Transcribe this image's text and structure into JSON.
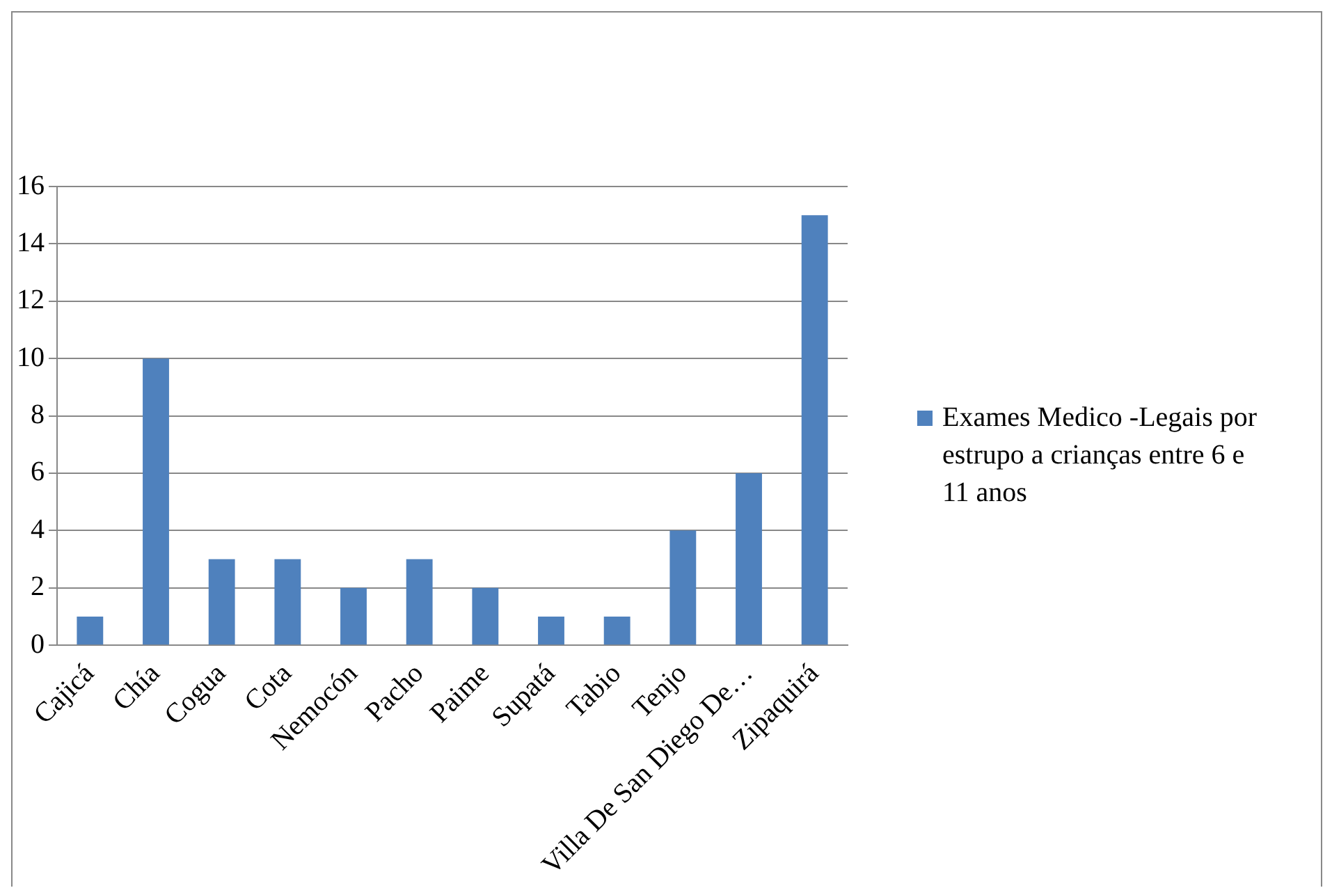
{
  "chart_data": {
    "type": "bar",
    "categories": [
      "Cajicá",
      "Chía",
      "Cogua",
      "Cota",
      "Nemocón",
      "Pacho",
      "Paime",
      "Supatá",
      "Tabio",
      "Tenjo",
      "Villa De San Diego De…",
      "Zipaquirá"
    ],
    "series": [
      {
        "name": "Exames Medico -Legais por estrupo a crianças entre 6 e 11 anos",
        "color": "#4f81bd",
        "values": [
          1,
          10,
          3,
          3,
          2,
          3,
          2,
          1,
          1,
          4,
          6,
          15
        ]
      }
    ],
    "ylim": [
      0,
      16
    ],
    "yticks": [
      0,
      2,
      4,
      6,
      8,
      10,
      12,
      14,
      16
    ],
    "grid": "y",
    "legend": "right"
  }
}
